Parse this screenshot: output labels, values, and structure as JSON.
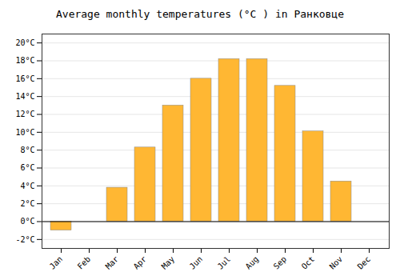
{
  "chart_data": {
    "type": "bar",
    "title": "Average monthly temperatures (°C ) in Ранковце",
    "categories": [
      "Jan",
      "Feb",
      "Mar",
      "Apr",
      "May",
      "Jun",
      "Jul",
      "Aug",
      "Sep",
      "Oct",
      "Nov",
      "Dec"
    ],
    "values": [
      -1.0,
      0.0,
      3.8,
      8.3,
      13.0,
      16.0,
      18.2,
      18.2,
      15.2,
      10.1,
      4.5,
      0.0
    ],
    "color": "#FFB733",
    "ylim": [
      -3,
      21
    ],
    "yticks": [
      {
        "value": -2,
        "label": "-2°C"
      },
      {
        "value": 0,
        "label": "0°C"
      },
      {
        "value": 2,
        "label": "2°C"
      },
      {
        "value": 4,
        "label": "4°C"
      },
      {
        "value": 6,
        "label": "6°C"
      },
      {
        "value": 8,
        "label": "8°C"
      },
      {
        "value": 10,
        "label": "10°C"
      },
      {
        "value": 12,
        "label": "12°C"
      },
      {
        "value": 14,
        "label": "14°C"
      },
      {
        "value": 16,
        "label": "16°C"
      },
      {
        "value": 18,
        "label": "18°C"
      },
      {
        "value": 20,
        "label": "20°C"
      }
    ],
    "grid": true
  }
}
